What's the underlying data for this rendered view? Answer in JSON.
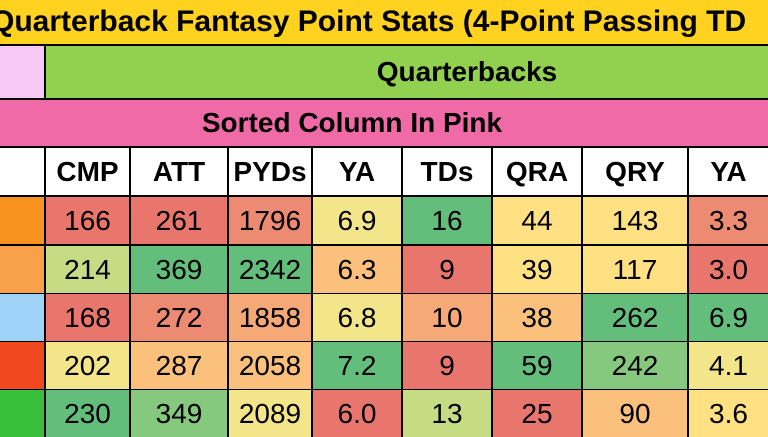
{
  "title": "Quarterback Fantasy Point Stats (4-Point Passing TD",
  "group_header": "Quarterbacks",
  "sort_note": "Sorted Column In Pink",
  "table": {
    "columns": [
      "CMP",
      "ATT",
      "PYDs",
      "YA",
      "TDs",
      "QRA",
      "QRY",
      "YA"
    ],
    "rows": [
      [
        "166",
        "261",
        "1796",
        "6.9",
        "16",
        "44",
        "143",
        "3.3"
      ],
      [
        "214",
        "369",
        "2342",
        "6.3",
        "9",
        "39",
        "117",
        "3.0"
      ],
      [
        "168",
        "272",
        "1858",
        "6.8",
        "10",
        "38",
        "262",
        "6.9"
      ],
      [
        "202",
        "287",
        "2058",
        "7.2",
        "9",
        "59",
        "242",
        "4.1"
      ],
      [
        "230",
        "349",
        "2089",
        "6.0",
        "13",
        "25",
        "90",
        "3.6"
      ]
    ]
  }
}
